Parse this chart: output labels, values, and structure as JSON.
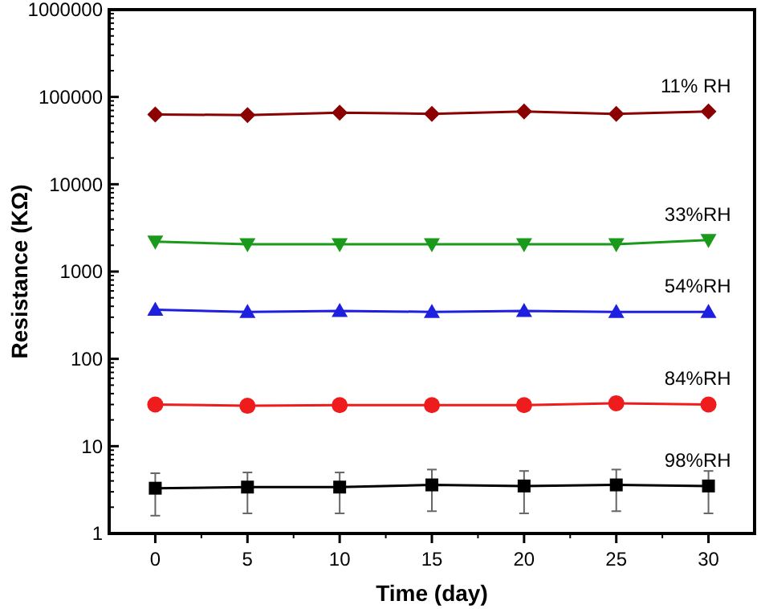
{
  "chart_data": {
    "type": "line",
    "xlabel": "Time (day)",
    "ylabel": "Resistance (KΩ)",
    "x": [
      0,
      5,
      10,
      15,
      20,
      25,
      30
    ],
    "xlim": [
      -2.5,
      32.5
    ],
    "xticks": [
      0,
      5,
      10,
      15,
      20,
      25,
      30
    ],
    "ylim": [
      1,
      1000000
    ],
    "yticks": [
      1,
      10,
      100,
      1000,
      10000,
      100000,
      1000000
    ],
    "log": "y",
    "grid": false,
    "line_style": "solid",
    "series": [
      {
        "name": "11% RH",
        "color": "#8b0000",
        "marker": "diamond",
        "values": [
          63000,
          62000,
          66000,
          64000,
          68000,
          64000,
          68000
        ]
      },
      {
        "name": "33%RH",
        "color": "#1a9a1a",
        "marker": "triangle-down",
        "values": [
          2200,
          2050,
          2050,
          2050,
          2050,
          2050,
          2300
        ]
      },
      {
        "name": "54%RH",
        "color": "#1f1fe0",
        "marker": "triangle",
        "values": [
          365,
          345,
          355,
          345,
          355,
          345,
          345
        ]
      },
      {
        "name": "84%RH",
        "color": "#ee1c1c",
        "marker": "circle",
        "values": [
          30,
          29,
          29.5,
          29.5,
          29.5,
          31,
          30
        ]
      },
      {
        "name": "98%RH",
        "color": "#000000",
        "marker": "square",
        "values": [
          3.3,
          3.4,
          3.4,
          3.6,
          3.5,
          3.6,
          3.5
        ],
        "errors": [
          [
            1.6,
            4.9
          ],
          [
            1.7,
            5.0
          ],
          [
            1.7,
            5.0
          ],
          [
            1.8,
            5.4
          ],
          [
            1.7,
            5.2
          ],
          [
            1.8,
            5.4
          ],
          [
            1.7,
            5.2
          ]
        ]
      }
    ]
  }
}
